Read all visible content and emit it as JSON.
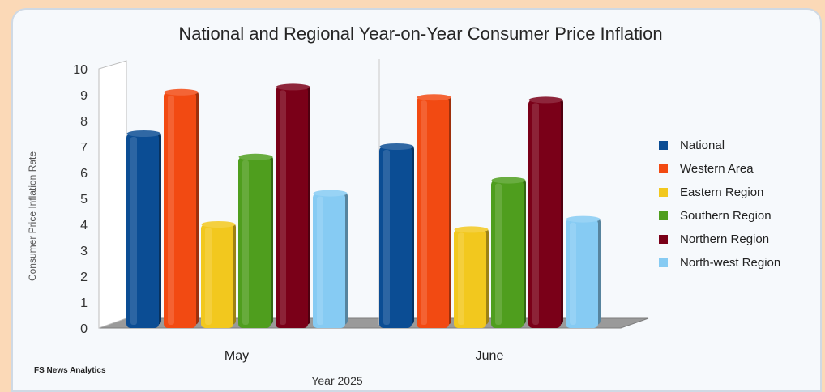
{
  "chart_data": {
    "type": "bar",
    "title": "National and Regional Year-on-Year Consumer Price Inflation",
    "xlabel": "Year 2025",
    "ylabel": "Consumer Price Inflation Rate",
    "ylim": [
      0,
      10
    ],
    "yticks": [
      "0",
      "1",
      "2",
      "3",
      "4",
      "5",
      "6",
      "7",
      "8",
      "9",
      "10"
    ],
    "categories": [
      "May",
      "June"
    ],
    "series": [
      {
        "name": "National",
        "values": [
          7.5,
          7.0
        ],
        "color": "#0b4d94"
      },
      {
        "name": "Western Area",
        "values": [
          9.1,
          8.9
        ],
        "color": "#f24a12"
      },
      {
        "name": "Eastern Region",
        "values": [
          4.0,
          3.8
        ],
        "color": "#f2c81e"
      },
      {
        "name": "Southern Region",
        "values": [
          6.6,
          5.7
        ],
        "color": "#4f9e1e"
      },
      {
        "name": "Northern Region",
        "values": [
          9.3,
          8.8
        ],
        "color": "#7a0018"
      },
      {
        "name": "North-west Region",
        "values": [
          5.2,
          4.2
        ],
        "color": "#86cbf3"
      }
    ],
    "legend_position": "right",
    "grid": false
  },
  "footer": {
    "source": "FS News Analytics"
  }
}
